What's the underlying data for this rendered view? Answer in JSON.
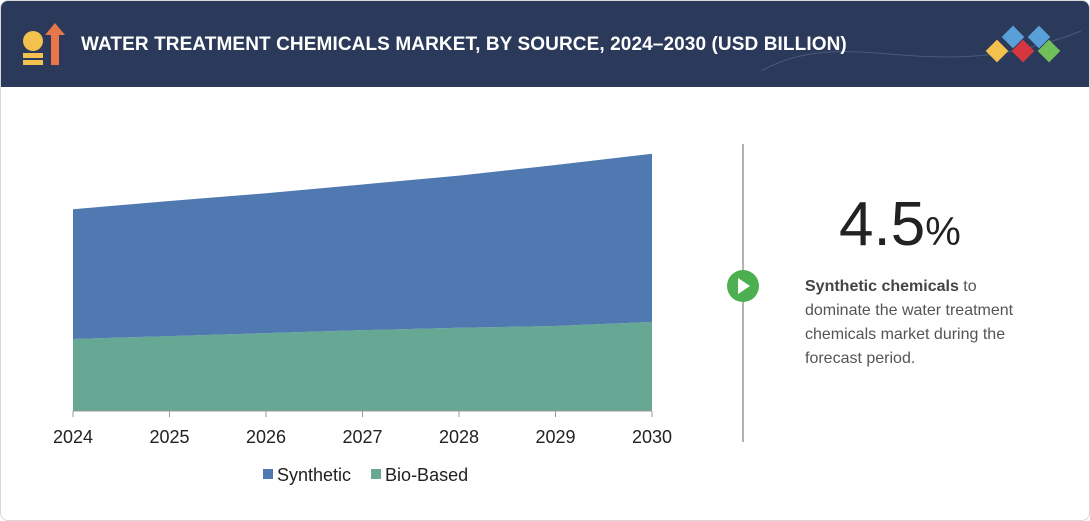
{
  "header": {
    "title": "WATER TREATMENT CHEMICALS MARKET, BY SOURCE, 2024–2030 (USD BILLION)"
  },
  "chart_data": {
    "type": "area",
    "stacked": true,
    "categories": [
      "2024",
      "2025",
      "2026",
      "2027",
      "2028",
      "2029",
      "2030"
    ],
    "series": [
      {
        "name": "Synthetic",
        "color": "#5079b1",
        "values": [
          22.0,
          22.9,
          23.7,
          24.7,
          25.8,
          27.3,
          28.5
        ]
      },
      {
        "name": "Bio-Based",
        "color": "#66a893",
        "values": [
          12.2,
          12.7,
          13.2,
          13.7,
          14.1,
          14.4,
          15.1
        ]
      }
    ],
    "ylim": [
      0,
      50
    ],
    "legend": "bottom"
  },
  "highlight": {
    "value": 4.5,
    "unit": "%",
    "bold": "Synthetic chemicals",
    "text": " to dominate the water treatment chemicals market during the forecast period."
  }
}
